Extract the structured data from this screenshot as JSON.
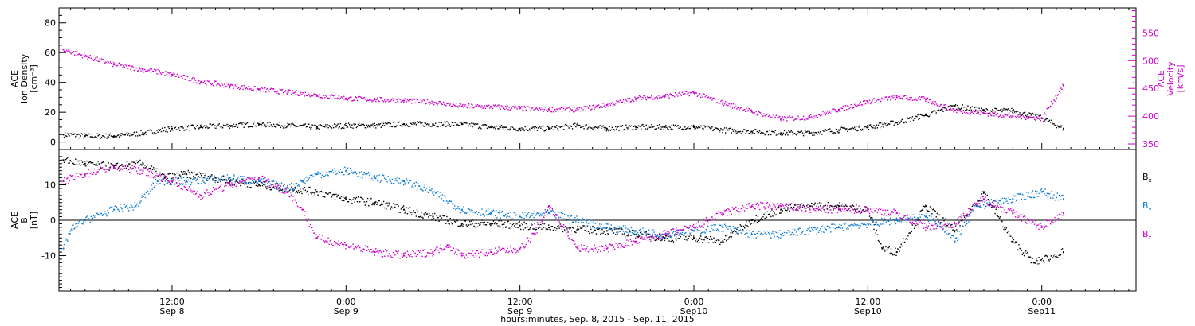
{
  "chart_data": [
    {
      "type": "scatter",
      "panel": "top",
      "title": "",
      "xlabel": "hours:minutes, Sep. 8, 2015 - Sep. 11, 2015",
      "x_ticks": [
        {
          "hours": 12,
          "time": "12:00",
          "date": "Sep 8"
        },
        {
          "hours": 24,
          "time": "0:00",
          "date": "Sep 9"
        },
        {
          "hours": 36,
          "time": "12:00",
          "date": "Sep 9"
        },
        {
          "hours": 48,
          "time": "0:00",
          "date": "Sep10"
        },
        {
          "hours": 60,
          "time": "12:00",
          "date": "Sep10"
        },
        {
          "hours": 72,
          "time": "0:00",
          "date": "Sep11"
        }
      ],
      "xlim_hours": [
        4.2,
        78.5
      ],
      "y_left": {
        "label_lines": [
          "ACE",
          "Ion Density",
          "[cm⁻³]"
        ],
        "ylim": [
          -5,
          90
        ],
        "ticks": [
          "0",
          "20",
          "40",
          "60",
          "80"
        ],
        "tick_values": [
          0,
          20,
          40,
          60,
          80
        ],
        "color": "#000000"
      },
      "y_right": {
        "label_lines": [
          "ACE",
          "Velocity",
          "[km/s]"
        ],
        "ylim": [
          340,
          595
        ],
        "ticks": [
          "350",
          "400",
          "450",
          "500",
          "550"
        ],
        "tick_values": [
          350,
          400,
          450,
          500,
          550
        ],
        "color": "#cc00cc"
      },
      "series": [
        {
          "axis": "left",
          "color": "#000000",
          "points": [
            [
              4.5,
              5
            ],
            [
              6,
              4
            ],
            [
              8,
              4
            ],
            [
              10,
              6
            ],
            [
              12,
              9
            ],
            [
              14,
              10
            ],
            [
              16,
              11
            ],
            [
              18,
              12
            ],
            [
              20,
              11
            ],
            [
              22,
              10
            ],
            [
              24,
              11
            ],
            [
              26,
              11
            ],
            [
              28,
              12
            ],
            [
              30,
              12
            ],
            [
              32,
              12
            ],
            [
              34,
              10
            ],
            [
              36,
              9
            ],
            [
              38,
              9
            ],
            [
              40,
              11
            ],
            [
              42,
              9
            ],
            [
              44,
              10
            ],
            [
              46,
              10
            ],
            [
              48,
              10
            ],
            [
              50,
              8
            ],
            [
              52,
              7
            ],
            [
              54,
              6
            ],
            [
              56,
              6
            ],
            [
              58,
              8
            ],
            [
              60,
              10
            ],
            [
              62,
              13
            ],
            [
              64,
              18
            ],
            [
              66,
              24
            ],
            [
              68,
              21
            ],
            [
              70,
              21
            ],
            [
              72,
              16
            ],
            [
              73.5,
              9
            ]
          ]
        },
        {
          "axis": "right",
          "color": "#cc00cc",
          "points": [
            [
              4.5,
              520
            ],
            [
              6,
              508
            ],
            [
              8,
              493
            ],
            [
              10,
              484
            ],
            [
              12,
              475
            ],
            [
              14,
              462
            ],
            [
              16,
              455
            ],
            [
              18,
              448
            ],
            [
              20,
              443
            ],
            [
              22,
              438
            ],
            [
              24,
              432
            ],
            [
              26,
              430
            ],
            [
              28,
              428
            ],
            [
              30,
              425
            ],
            [
              32,
              418
            ],
            [
              34,
              417
            ],
            [
              36,
              414
            ],
            [
              38,
              412
            ],
            [
              40,
              412
            ],
            [
              42,
              420
            ],
            [
              44,
              432
            ],
            [
              46,
              436
            ],
            [
              48,
              442
            ],
            [
              50,
              424
            ],
            [
              52,
              408
            ],
            [
              54,
              395
            ],
            [
              56,
              398
            ],
            [
              58,
              412
            ],
            [
              60,
              426
            ],
            [
              62,
              434
            ],
            [
              64,
              430
            ],
            [
              66,
              410
            ],
            [
              68,
              405
            ],
            [
              70,
              400
            ],
            [
              72,
              396
            ],
            [
              73.5,
              455
            ]
          ]
        }
      ]
    },
    {
      "type": "scatter",
      "panel": "bottom",
      "title": "",
      "y_left": {
        "label_lines": [
          "ACE",
          "B",
          "[nT]"
        ],
        "ylim": [
          -20,
          20
        ],
        "ticks": [
          "-10",
          "0",
          "10"
        ],
        "tick_values": [
          -10,
          0,
          10
        ]
      },
      "zero_line": true,
      "legend": "right",
      "series": [
        {
          "name": "Bx",
          "label_base": "B",
          "label_sub": "x",
          "color": "#000000",
          "points": [
            [
              4.5,
              17
            ],
            [
              6,
              16
            ],
            [
              8,
              15
            ],
            [
              10,
              16
            ],
            [
              11.5,
              12
            ],
            [
              13,
              13
            ],
            [
              15,
              12
            ],
            [
              16,
              11
            ],
            [
              18,
              10
            ],
            [
              20,
              9
            ],
            [
              22,
              8
            ],
            [
              24,
              6
            ],
            [
              26,
              5
            ],
            [
              28,
              3
            ],
            [
              30,
              1
            ],
            [
              32,
              -1
            ],
            [
              34,
              -1
            ],
            [
              36,
              -1.5
            ],
            [
              38,
              -2
            ],
            [
              40,
              -2.5
            ],
            [
              42,
              -3
            ],
            [
              44,
              -4
            ],
            [
              46,
              -5
            ],
            [
              48,
              -5
            ],
            [
              50,
              -6
            ],
            [
              52,
              0
            ],
            [
              54,
              3
            ],
            [
              56,
              4
            ],
            [
              58,
              4
            ],
            [
              60,
              3
            ],
            [
              61,
              -8
            ],
            [
              62,
              -9
            ],
            [
              64,
              4
            ],
            [
              66,
              -3
            ],
            [
              68,
              8
            ],
            [
              70,
              -6
            ],
            [
              71.5,
              -12
            ],
            [
              73.5,
              -9
            ]
          ]
        },
        {
          "name": "By",
          "label_base": "B",
          "label_sub": "y",
          "color": "#0a7bd6",
          "points": [
            [
              4.5,
              -8
            ],
            [
              5,
              -3
            ],
            [
              6,
              0
            ],
            [
              8,
              3
            ],
            [
              9.5,
              4
            ],
            [
              11,
              11
            ],
            [
              13,
              11
            ],
            [
              16,
              12
            ],
            [
              18,
              11
            ],
            [
              20,
              9
            ],
            [
              21,
              11
            ],
            [
              22,
              13
            ],
            [
              24,
              14
            ],
            [
              26,
              12
            ],
            [
              28,
              11
            ],
            [
              30,
              8
            ],
            [
              32,
              3
            ],
            [
              34,
              2
            ],
            [
              36,
              1
            ],
            [
              38,
              2
            ],
            [
              40,
              0
            ],
            [
              42,
              -2
            ],
            [
              44,
              -3
            ],
            [
              46,
              -4
            ],
            [
              48,
              -3
            ],
            [
              50,
              -2
            ],
            [
              52,
              -4
            ],
            [
              54,
              -4
            ],
            [
              56,
              -3
            ],
            [
              58,
              -2
            ],
            [
              60,
              -1
            ],
            [
              62,
              0
            ],
            [
              64,
              1
            ],
            [
              65,
              -1
            ],
            [
              66,
              -6
            ],
            [
              67.5,
              4
            ],
            [
              70,
              6
            ],
            [
              72,
              8
            ],
            [
              73.5,
              6
            ]
          ]
        },
        {
          "name": "Bz",
          "label_base": "B",
          "label_sub": "z",
          "color": "#cc00cc",
          "points": [
            [
              4.5,
              11
            ],
            [
              6,
              13
            ],
            [
              8,
              15
            ],
            [
              10,
              14
            ],
            [
              12,
              11
            ],
            [
              14,
              7
            ],
            [
              16,
              10
            ],
            [
              18,
              12
            ],
            [
              20,
              8
            ],
            [
              21,
              3
            ],
            [
              22,
              -5
            ],
            [
              24,
              -7
            ],
            [
              26,
              -9
            ],
            [
              28,
              -10
            ],
            [
              30,
              -9
            ],
            [
              31,
              -7
            ],
            [
              32,
              -10
            ],
            [
              34,
              -9
            ],
            [
              36,
              -8
            ],
            [
              37,
              -4
            ],
            [
              38,
              4
            ],
            [
              40,
              -8
            ],
            [
              42,
              -8
            ],
            [
              44,
              -6
            ],
            [
              46,
              -4
            ],
            [
              48,
              -2
            ],
            [
              50,
              2
            ],
            [
              52,
              4
            ],
            [
              54,
              4
            ],
            [
              56,
              3
            ],
            [
              58,
              3
            ],
            [
              60,
              3
            ],
            [
              62,
              2
            ],
            [
              64,
              -2
            ],
            [
              66,
              -1
            ],
            [
              68,
              6
            ],
            [
              70,
              2
            ],
            [
              72,
              -2
            ],
            [
              73.5,
              2
            ]
          ]
        }
      ]
    }
  ]
}
